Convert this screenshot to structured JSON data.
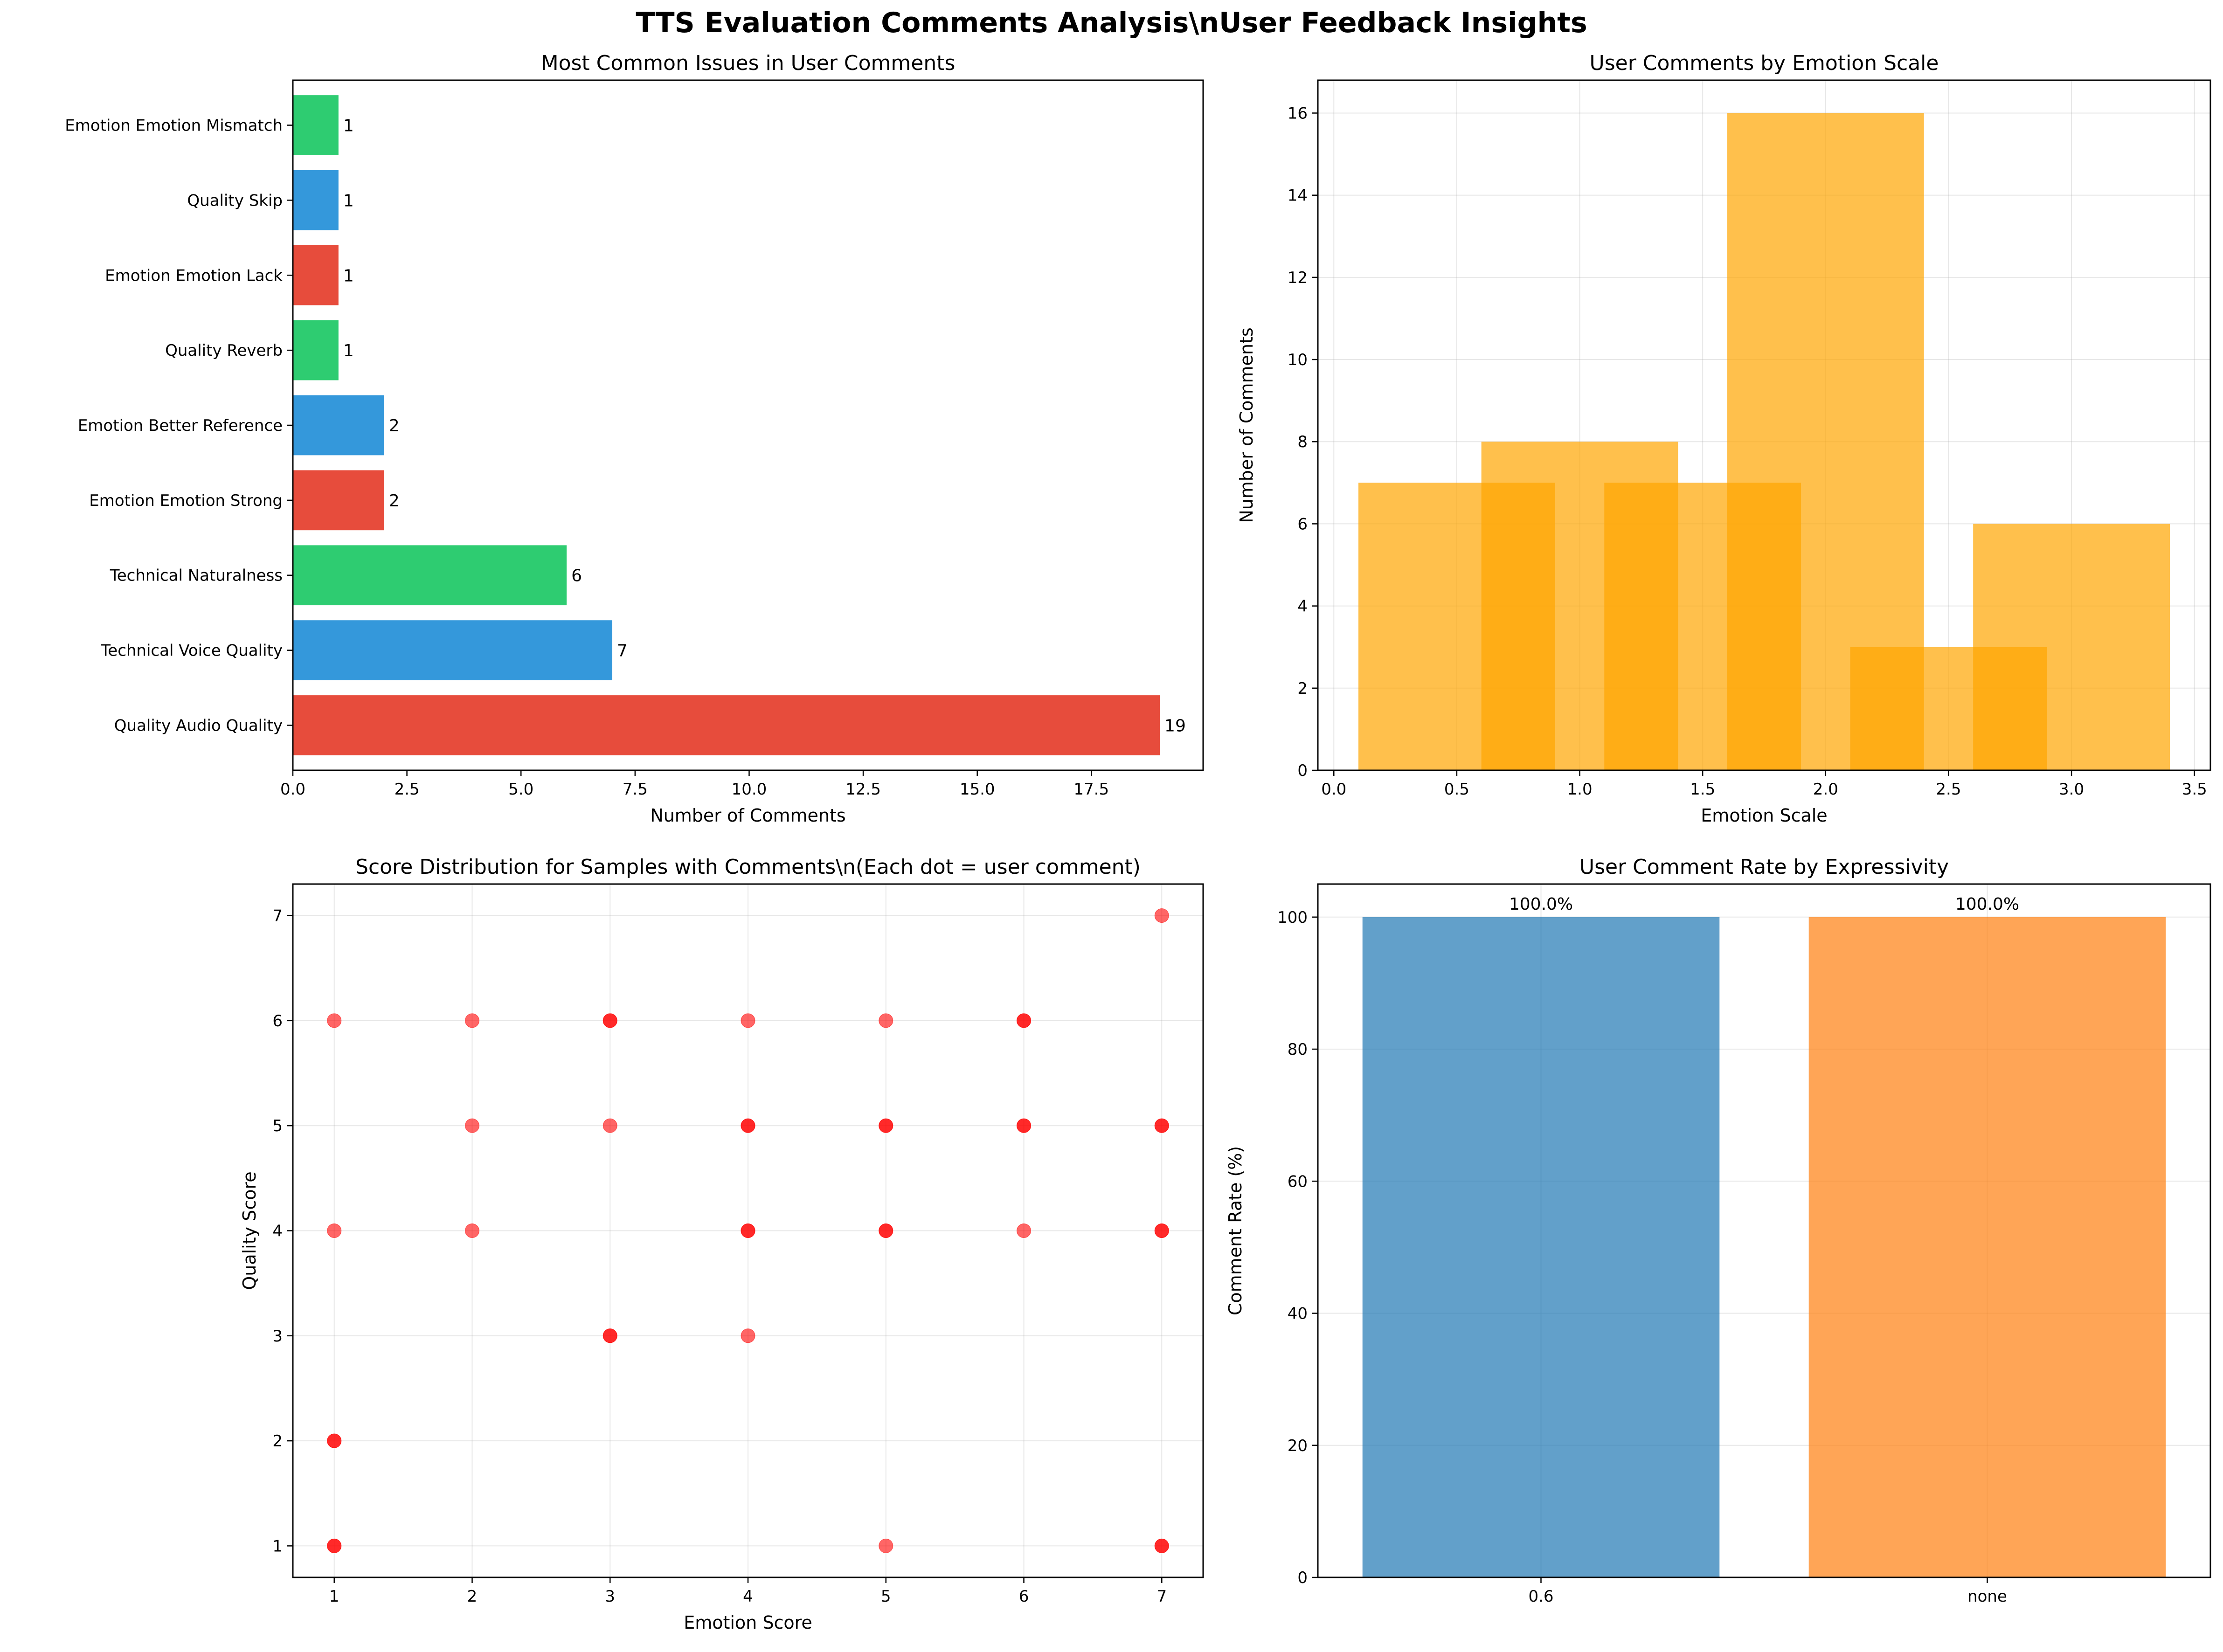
{
  "figure": {
    "title": "TTS Evaluation Comments Analysis\\nUser Feedback Insights"
  },
  "chart_data": [
    {
      "id": "issues",
      "type": "bar",
      "orientation": "horizontal",
      "title": "Most Common Issues in User Comments",
      "xlabel": "Number of Comments",
      "ylabel": "",
      "xlim": [
        0,
        19.95
      ],
      "xticks": [
        0,
        2.5,
        5,
        7.5,
        10,
        12.5,
        15,
        17.5
      ],
      "xtick_labels": [
        "0.0",
        "2.5",
        "5.0",
        "7.5",
        "10.0",
        "12.5",
        "15.0",
        "17.5"
      ],
      "categories": [
        "Quality Audio Quality",
        "Technical Voice Quality",
        "Technical Naturalness",
        "Emotion Emotion Strong",
        "Emotion Better Reference",
        "Quality Reverb",
        "Emotion Emotion Lack",
        "Quality Skip",
        "Emotion Emotion Mismatch"
      ],
      "values": [
        19,
        7,
        6,
        2,
        2,
        1,
        1,
        1,
        1
      ],
      "value_labels": [
        "19",
        "7",
        "6",
        "2",
        "2",
        "1",
        "1",
        "1",
        "1"
      ],
      "colors": [
        "#e74c3c",
        "#3498db",
        "#2ecc71",
        "#e74c3c",
        "#3498db",
        "#2ecc71",
        "#e74c3c",
        "#3498db",
        "#2ecc71"
      ],
      "grid": false
    },
    {
      "id": "emotion_scale",
      "type": "bar",
      "title": "User Comments by Emotion Scale",
      "xlabel": "Emotion Scale",
      "ylabel": "Number of Comments",
      "xlim": [
        -0.065,
        3.565
      ],
      "ylim": [
        0,
        16.8
      ],
      "xticks": [
        0,
        0.5,
        1,
        1.5,
        2,
        2.5,
        3,
        3.5
      ],
      "xtick_labels": [
        "0.0",
        "0.5",
        "1.0",
        "1.5",
        "2.0",
        "2.5",
        "3.0",
        "3.5"
      ],
      "yticks": [
        0,
        2,
        4,
        6,
        8,
        10,
        12,
        14,
        16
      ],
      "ytick_labels": [
        "0",
        "2",
        "4",
        "6",
        "8",
        "10",
        "12",
        "14",
        "16"
      ],
      "bar_width": 0.8,
      "x": [
        0.5,
        1.0,
        1.5,
        2.0,
        2.5,
        3.0
      ],
      "values": [
        7,
        8,
        7,
        16,
        3,
        6
      ],
      "color": "#ffa500",
      "grid": true
    },
    {
      "id": "score_scatter",
      "type": "scatter",
      "title": "Score Distribution for Samples with Comments\\n(Each dot = user comment)",
      "xlabel": "Emotion Score",
      "ylabel": "Quality Score",
      "xlim": [
        0.7,
        7.3
      ],
      "ylim": [
        0.7,
        7.3
      ],
      "xticks": [
        1,
        2,
        3,
        4,
        5,
        6,
        7
      ],
      "xtick_labels": [
        "1",
        "2",
        "3",
        "4",
        "5",
        "6",
        "7"
      ],
      "yticks": [
        1,
        2,
        3,
        4,
        5,
        6,
        7
      ],
      "ytick_labels": [
        "1",
        "2",
        "3",
        "4",
        "5",
        "6",
        "7"
      ],
      "points": [
        [
          1,
          6
        ],
        [
          1,
          4
        ],
        [
          1,
          2
        ],
        [
          1,
          2
        ],
        [
          1,
          1
        ],
        [
          1,
          1
        ],
        [
          2,
          6
        ],
        [
          2,
          5
        ],
        [
          2,
          4
        ],
        [
          3,
          6
        ],
        [
          3,
          6
        ],
        [
          3,
          5
        ],
        [
          3,
          3
        ],
        [
          3,
          3
        ],
        [
          4,
          6
        ],
        [
          4,
          5
        ],
        [
          4,
          5
        ],
        [
          4,
          4
        ],
        [
          4,
          4
        ],
        [
          4,
          3
        ],
        [
          5,
          6
        ],
        [
          5,
          5
        ],
        [
          5,
          5
        ],
        [
          5,
          4
        ],
        [
          5,
          4
        ],
        [
          5,
          1
        ],
        [
          6,
          6
        ],
        [
          6,
          6
        ],
        [
          6,
          5
        ],
        [
          6,
          5
        ],
        [
          6,
          4
        ],
        [
          7,
          7
        ],
        [
          7,
          5
        ],
        [
          7,
          5
        ],
        [
          7,
          4
        ],
        [
          7,
          4
        ],
        [
          7,
          1
        ],
        [
          7,
          1
        ]
      ],
      "color": "#ff0000",
      "grid": true
    },
    {
      "id": "comment_rate",
      "type": "bar",
      "title": "User Comment Rate by Expressivity",
      "xlabel": "",
      "ylabel": "Comment Rate (%)",
      "ylim": [
        0,
        105
      ],
      "yticks": [
        0,
        20,
        40,
        60,
        80,
        100
      ],
      "ytick_labels": [
        "0",
        "20",
        "40",
        "60",
        "80",
        "100"
      ],
      "categories": [
        "0.6",
        "none"
      ],
      "values": [
        100,
        100
      ],
      "value_labels": [
        "100.0%",
        "100.0%"
      ],
      "colors": [
        "#1f77b4",
        "#ff7f0e"
      ],
      "grid": true
    }
  ]
}
